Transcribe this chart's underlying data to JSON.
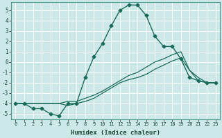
{
  "xlabel": "Humidex (Indice chaleur)",
  "ylabel": "",
  "background_color": "#cce8e8",
  "grid_color": "#ffffff",
  "line_color": "#1a6b5a",
  "xlim": [
    -0.5,
    23.5
  ],
  "ylim": [
    -5.5,
    5.8
  ],
  "xticks": [
    0,
    1,
    2,
    3,
    4,
    5,
    6,
    7,
    8,
    9,
    10,
    11,
    12,
    13,
    14,
    15,
    16,
    17,
    18,
    19,
    20,
    21,
    22,
    23
  ],
  "yticks": [
    -5,
    -4,
    -3,
    -2,
    -1,
    0,
    1,
    2,
    3,
    4,
    5
  ],
  "series": [
    {
      "x": [
        0,
        1,
        2,
        3,
        4,
        5,
        6,
        7,
        8,
        9,
        10,
        11,
        12,
        13,
        14,
        15,
        16,
        17,
        18,
        19,
        20,
        21,
        22,
        23
      ],
      "y": [
        -4,
        -4,
        -4.5,
        -4.5,
        -5,
        -5.2,
        -4.0,
        -4.0,
        -1.5,
        0.5,
        1.8,
        3.5,
        5.0,
        5.5,
        5.5,
        4.5,
        2.5,
        1.5,
        1.5,
        0.3,
        -1.5,
        -1.8,
        -2,
        -2
      ],
      "marker": "D",
      "markersize": 2.5,
      "linewidth": 1.0
    },
    {
      "x": [
        0,
        1,
        2,
        3,
        4,
        5,
        6,
        7,
        8,
        9,
        10,
        11,
        12,
        13,
        14,
        15,
        16,
        17,
        18,
        19,
        20,
        21,
        22,
        23
      ],
      "y": [
        -4.0,
        -4.0,
        -4.0,
        -4.0,
        -4.0,
        -4.0,
        -3.8,
        -3.8,
        -3.5,
        -3.2,
        -2.8,
        -2.3,
        -1.8,
        -1.3,
        -1.0,
        -0.5,
        0.0,
        0.3,
        0.7,
        1.0,
        -0.8,
        -1.5,
        -2.0,
        -2.0
      ],
      "marker": null,
      "markersize": 0,
      "linewidth": 0.9
    },
    {
      "x": [
        0,
        1,
        2,
        3,
        4,
        5,
        6,
        7,
        8,
        9,
        10,
        11,
        12,
        13,
        14,
        15,
        16,
        17,
        18,
        19,
        20,
        21,
        22,
        23
      ],
      "y": [
        -4.0,
        -4.0,
        -4.0,
        -4.0,
        -4.0,
        -4.0,
        -4.2,
        -4.0,
        -3.8,
        -3.5,
        -3.0,
        -2.5,
        -2.0,
        -1.7,
        -1.5,
        -1.2,
        -0.7,
        -0.3,
        0.1,
        0.4,
        -0.8,
        -1.8,
        -2.0,
        -2.0
      ],
      "marker": null,
      "markersize": 0,
      "linewidth": 0.9
    }
  ]
}
